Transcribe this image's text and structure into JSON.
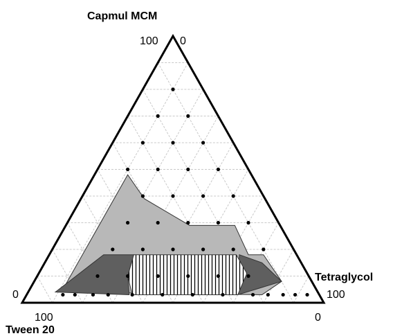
{
  "chart_data": {
    "type": "ternary",
    "axes": {
      "top": {
        "title": "Capmul MCM",
        "ticks": [
          100,
          0
        ]
      },
      "right": {
        "title": "Tetraglycol",
        "ticks": [
          100,
          0
        ]
      },
      "left": {
        "title": "Tween 20",
        "ticks": [
          0,
          100
        ]
      }
    },
    "grid": true,
    "regions": [
      {
        "color": "#b8b8b8",
        "capmul": [
          4,
          48,
          39,
          29,
          29,
          18,
          18,
          8,
          3
        ],
        "tetraglycol": [
          11,
          11,
          21,
          41,
          56,
          66,
          71,
          82,
          78
        ]
      },
      {
        "color": "#5f5f5f",
        "capmul": [
          4,
          18,
          18,
          10,
          3
        ],
        "tetraglycol": [
          9,
          18,
          28,
          30,
          34
        ]
      },
      {
        "color": "#5f5f5f",
        "capmul": [
          18,
          15,
          8,
          3
        ],
        "tetraglycol": [
          63,
          72,
          82,
          70
        ]
      },
      {
        "color": "hatch",
        "capmul": [
          18,
          18,
          11,
          3,
          3,
          10
        ],
        "tetraglycol": [
          28,
          62,
          69,
          70,
          35,
          30
        ]
      }
    ],
    "points": {
      "capmul": [
        80,
        70,
        70,
        60,
        60,
        60,
        50,
        50,
        50,
        50,
        40,
        40,
        40,
        40,
        30,
        30,
        30,
        30,
        30,
        20,
        20,
        20,
        20,
        20,
        20,
        10,
        10,
        10,
        10,
        10,
        10,
        3,
        3,
        3,
        3,
        3,
        3,
        3,
        3,
        3,
        3,
        3,
        3,
        3
      ],
      "tetraglycol": [
        10,
        10,
        20,
        10,
        20,
        30,
        10,
        20,
        30,
        40,
        20,
        30,
        40,
        50,
        20,
        30,
        40,
        50,
        60,
        20,
        30,
        40,
        50,
        60,
        70,
        20,
        30,
        40,
        50,
        60,
        70,
        12,
        16,
        22,
        27,
        35,
        45,
        55,
        65,
        75,
        80,
        85,
        89,
        93
      ]
    }
  }
}
